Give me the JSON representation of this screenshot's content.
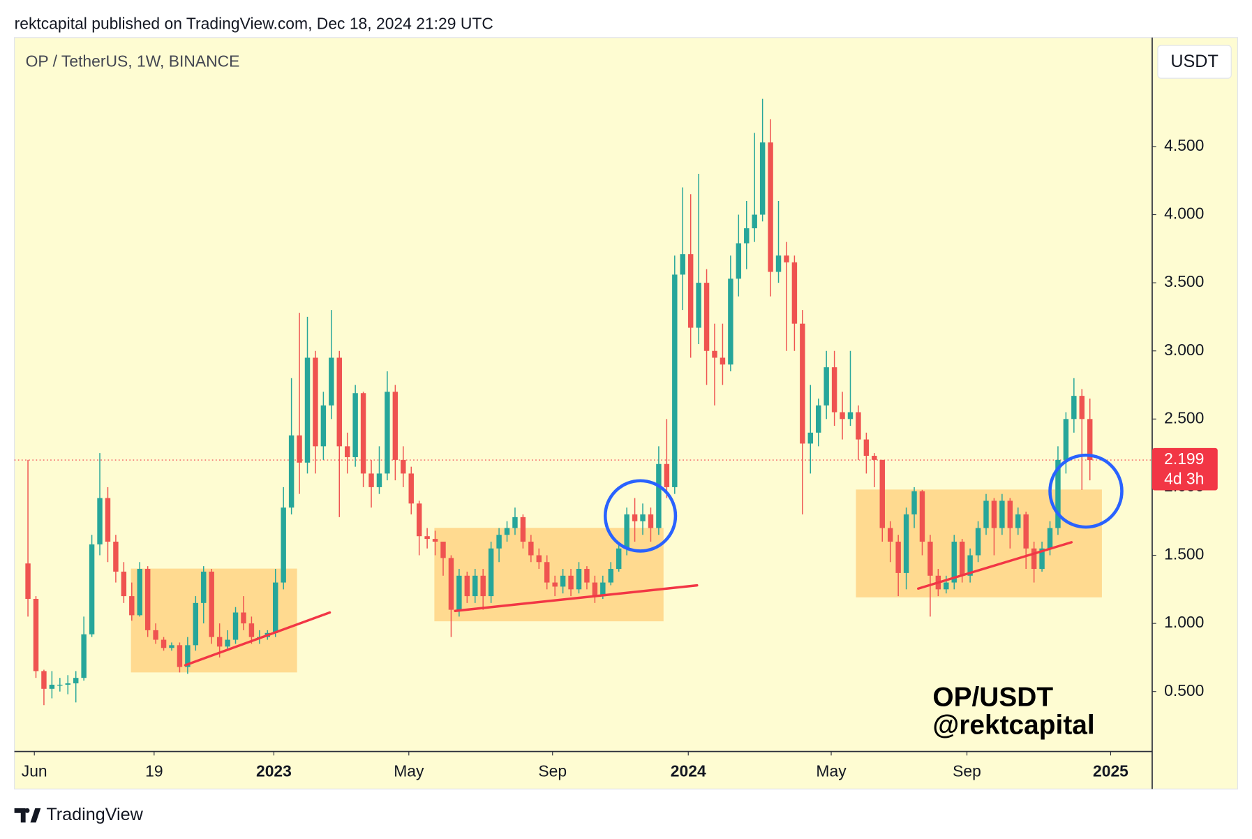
{
  "header": "rektcapital published on TradingView.com, Dec 18, 2024 21:29 UTC",
  "footer": "TradingView",
  "chart_data": {
    "type": "candlestick",
    "title": "OP / TetherUS, 1W, BINANCE",
    "currency": "USDT",
    "watermark": [
      "OP/USDT",
      "@rektcapital"
    ],
    "countdown": "4d 3h",
    "up_color": "#26a69a",
    "down_color": "#ef5350",
    "price_line_color": "#f23645",
    "open": [
      1.44,
      1.18,
      0.65,
      0.52,
      0.55,
      0.55,
      0.56,
      0.6,
      0.92,
      1.58,
      1.92,
      1.6,
      1.38,
      1.2,
      1.06,
      1.4,
      0.95,
      0.88,
      0.82,
      0.84,
      0.68,
      0.84,
      1.15,
      1.38,
      0.9,
      0.83,
      0.88,
      1.08,
      1.0,
      0.9,
      0.9,
      0.93,
      1.3,
      1.85,
      2.38,
      2.18,
      2.95,
      2.3,
      2.6,
      2.95,
      2.3,
      2.22,
      2.69,
      2.1,
      2.0,
      2.1,
      2.7,
      2.2,
      2.1,
      1.88,
      1.64,
      1.62,
      1.6,
      1.48,
      1.1,
      1.35,
      1.2,
      1.35,
      1.2,
      1.55,
      1.65,
      1.7,
      1.78,
      1.6,
      1.5,
      1.45,
      1.3,
      1.27,
      1.35,
      1.25,
      1.4,
      1.3,
      1.2,
      1.3,
      1.4,
      1.55,
      1.8,
      1.75,
      1.8,
      1.7,
      2.17,
      2.0,
      3.56,
      3.71,
      3.17,
      3.5,
      3.0,
      2.95,
      2.9,
      3.53,
      3.79,
      3.9,
      4.0,
      4.53,
      3.58,
      3.7,
      3.65,
      3.2,
      2.32,
      2.4,
      2.6,
      2.88,
      2.55,
      2.5,
      2.55,
      2.35,
      2.23,
      2.2,
      1.7,
      1.6,
      1.37,
      1.8,
      1.97,
      1.6,
      1.35,
      1.25,
      1.3,
      1.6,
      1.35,
      1.5,
      1.7,
      1.9,
      1.7,
      1.9,
      1.7,
      1.8,
      1.55,
      1.4,
      1.55,
      1.7,
      2.2,
      2.5,
      2.67,
      2.5
    ],
    "high": [
      2.2,
      1.2,
      0.66,
      0.65,
      0.6,
      0.62,
      0.65,
      1.05,
      1.65,
      2.25,
      2.0,
      1.65,
      1.45,
      1.3,
      1.45,
      1.42,
      1.0,
      0.9,
      0.86,
      0.86,
      0.9,
      1.2,
      1.42,
      1.4,
      1.0,
      0.95,
      1.12,
      1.2,
      1.05,
      0.95,
      0.95,
      1.4,
      2.0,
      2.8,
      3.28,
      3.25,
      3.0,
      2.7,
      3.3,
      3.0,
      2.4,
      2.75,
      2.7,
      2.2,
      2.3,
      2.85,
      2.75,
      2.3,
      2.15,
      1.9,
      1.7,
      1.68,
      1.6,
      1.5,
      1.4,
      1.38,
      1.4,
      1.4,
      1.6,
      1.7,
      1.75,
      1.85,
      1.8,
      1.65,
      1.55,
      1.5,
      1.35,
      1.4,
      1.4,
      1.45,
      1.42,
      1.35,
      1.35,
      1.45,
      1.6,
      1.85,
      1.92,
      1.88,
      1.85,
      2.3,
      2.5,
      3.7,
      4.2,
      4.15,
      4.3,
      3.6,
      3.2,
      3.2,
      3.7,
      4.0,
      4.1,
      4.6,
      4.85,
      4.7,
      4.1,
      3.8,
      3.7,
      3.3,
      2.75,
      2.65,
      3.0,
      3.0,
      2.7,
      3.0,
      2.6,
      2.4,
      2.25,
      2.2,
      1.75,
      1.65,
      1.85,
      2.0,
      1.98,
      1.65,
      1.4,
      1.35,
      1.65,
      1.62,
      1.55,
      1.75,
      1.95,
      1.92,
      1.95,
      1.92,
      1.85,
      1.82,
      1.6,
      1.6,
      1.75,
      2.3,
      2.55,
      2.8,
      2.72,
      2.65
    ],
    "low": [
      1.05,
      0.6,
      0.4,
      0.45,
      0.5,
      0.48,
      0.42,
      0.58,
      0.9,
      1.5,
      1.45,
      1.3,
      1.15,
      1.02,
      1.05,
      0.9,
      0.85,
      0.8,
      0.8,
      0.64,
      0.63,
      0.8,
      1.0,
      0.85,
      0.75,
      0.8,
      0.85,
      0.95,
      0.85,
      0.85,
      0.88,
      0.9,
      1.25,
      1.8,
      1.95,
      2.1,
      2.1,
      2.2,
      2.5,
      1.78,
      2.1,
      2.15,
      2.0,
      1.85,
      1.95,
      2.05,
      2.05,
      2.0,
      1.8,
      1.5,
      1.55,
      1.5,
      1.35,
      0.9,
      1.05,
      1.15,
      1.15,
      1.1,
      1.15,
      1.45,
      1.6,
      1.65,
      1.55,
      1.45,
      1.4,
      1.25,
      1.2,
      1.22,
      1.2,
      1.22,
      1.25,
      1.15,
      1.18,
      1.28,
      1.38,
      1.5,
      1.6,
      1.65,
      1.6,
      1.65,
      1.92,
      1.95,
      3.3,
      2.95,
      3.05,
      2.75,
      2.6,
      2.75,
      2.85,
      3.4,
      3.6,
      3.8,
      3.95,
      3.4,
      3.5,
      3.0,
      3.0,
      1.8,
      2.1,
      2.3,
      2.5,
      2.45,
      2.35,
      2.45,
      2.2,
      2.1,
      2.0,
      1.6,
      1.45,
      1.2,
      1.25,
      1.7,
      1.5,
      1.05,
      1.2,
      1.22,
      1.25,
      1.3,
      1.3,
      1.45,
      1.65,
      1.5,
      1.65,
      1.55,
      1.65,
      1.4,
      1.3,
      1.38,
      1.5,
      1.65,
      2.1,
      2.4,
      1.98,
      2.05
    ],
    "close": [
      1.18,
      0.65,
      0.52,
      0.55,
      0.55,
      0.56,
      0.6,
      0.92,
      1.58,
      1.92,
      1.6,
      1.38,
      1.2,
      1.06,
      1.4,
      0.95,
      0.88,
      0.82,
      0.84,
      0.68,
      0.84,
      1.15,
      1.38,
      0.9,
      0.83,
      0.88,
      1.08,
      1.0,
      0.9,
      0.9,
      0.93,
      1.3,
      1.85,
      2.38,
      2.18,
      2.95,
      2.3,
      2.6,
      2.95,
      2.3,
      2.22,
      2.69,
      2.1,
      2.0,
      2.1,
      2.7,
      2.2,
      2.1,
      1.88,
      1.64,
      1.62,
      1.6,
      1.48,
      1.1,
      1.35,
      1.2,
      1.35,
      1.2,
      1.55,
      1.65,
      1.7,
      1.78,
      1.6,
      1.5,
      1.45,
      1.3,
      1.27,
      1.35,
      1.25,
      1.4,
      1.3,
      1.2,
      1.3,
      1.4,
      1.55,
      1.8,
      1.75,
      1.8,
      1.7,
      2.17,
      2.0,
      3.56,
      3.71,
      3.17,
      3.5,
      3.0,
      2.95,
      2.9,
      3.53,
      3.79,
      3.9,
      4.0,
      4.53,
      3.58,
      3.7,
      3.65,
      3.2,
      2.32,
      2.4,
      2.6,
      2.88,
      2.55,
      2.5,
      2.55,
      2.35,
      2.23,
      2.2,
      1.7,
      1.6,
      1.37,
      1.8,
      1.97,
      1.6,
      1.35,
      1.25,
      1.3,
      1.6,
      1.35,
      1.5,
      1.7,
      1.9,
      1.7,
      1.9,
      1.7,
      1.8,
      1.55,
      1.4,
      1.55,
      1.7,
      2.2,
      2.5,
      2.67,
      2.5,
      2.199
    ],
    "xlim": [
      -1.7,
      140.8
    ],
    "xticks": [
      {
        "value": 0.8,
        "label": "Jun"
      },
      {
        "value": 15.8,
        "label": "19"
      },
      {
        "value": 30.8,
        "label": "2023"
      },
      {
        "value": 47.7,
        "label": "May"
      },
      {
        "value": 65.7,
        "label": "Sep"
      },
      {
        "value": 82.7,
        "label": "2024"
      },
      {
        "value": 100.6,
        "label": "May"
      },
      {
        "value": 117.6,
        "label": "Sep"
      },
      {
        "value": 135.6,
        "label": "2025"
      }
    ],
    "ylim": [
      0.06,
      5.3
    ],
    "yticks": [
      {
        "value": 0.5,
        "label": "0.500"
      },
      {
        "value": 1,
        "label": "1.000"
      },
      {
        "value": 1.5,
        "label": "1.500"
      },
      {
        "value": 2,
        "label": "2.000"
      },
      {
        "value": 2.5,
        "label": "2.500"
      },
      {
        "value": 3,
        "label": "3.000"
      },
      {
        "value": 3.5,
        "label": "3.500"
      },
      {
        "value": 4,
        "label": "4.000"
      },
      {
        "value": 4.5,
        "label": "4.500"
      }
    ]
  }
}
